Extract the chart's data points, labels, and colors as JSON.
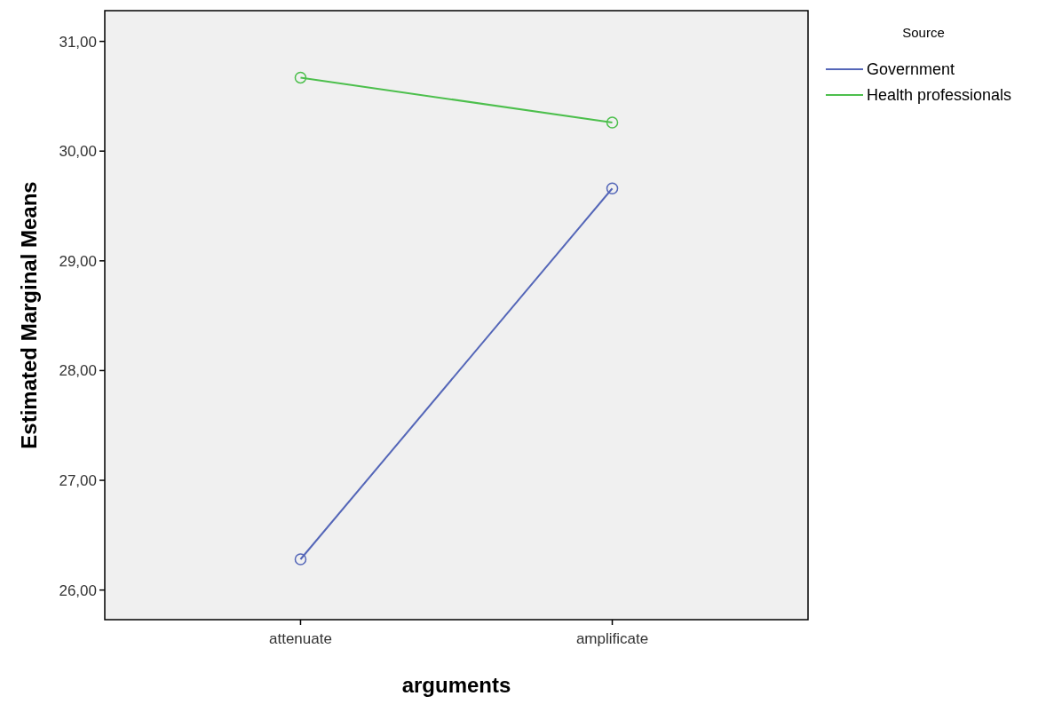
{
  "chart_data": {
    "type": "line",
    "xlabel": "arguments",
    "ylabel": "Estimated Marginal Means",
    "legend_title": "Source",
    "categories": [
      "attenuate",
      "amplificate"
    ],
    "series": [
      {
        "name": "Government",
        "color": "#5466b8",
        "values": [
          26.28,
          29.66
        ]
      },
      {
        "name": "Health professionals",
        "color": "#4cbf4c",
        "values": [
          30.67,
          30.26
        ]
      }
    ],
    "ylim": [
      25.73,
      31.28
    ],
    "yticks": [
      {
        "value": 26,
        "label": "26,00"
      },
      {
        "value": 27,
        "label": "27,00"
      },
      {
        "value": 28,
        "label": "28,00"
      },
      {
        "value": 29,
        "label": "29,00"
      },
      {
        "value": 30,
        "label": "30,00"
      },
      {
        "value": 31,
        "label": "31,00"
      }
    ],
    "grid": false,
    "legend": "top right",
    "marker": "circle",
    "line_style": "solid"
  }
}
